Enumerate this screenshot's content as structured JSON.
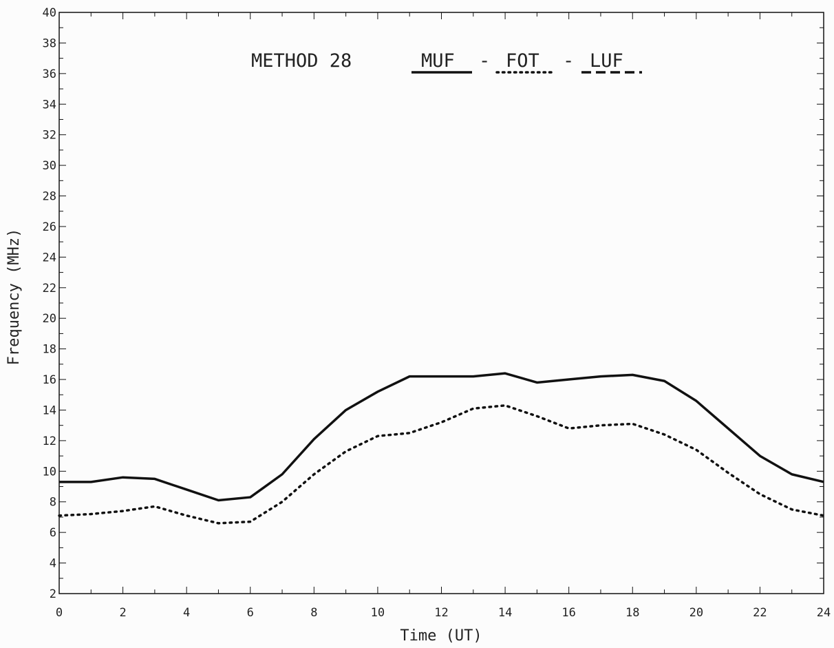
{
  "chart_data": {
    "type": "line",
    "title": "METHOD 28",
    "title_separator": "-",
    "xlabel": "Time (UT)",
    "ylabel": "Frequency (MHz)",
    "xlim": [
      0,
      24
    ],
    "ylim": [
      2,
      40
    ],
    "x_tick_labels": [
      "0",
      "2",
      "4",
      "6",
      "8",
      "10",
      "12",
      "14",
      "16",
      "18",
      "20",
      "22",
      "24"
    ],
    "y_tick_labels": [
      "2",
      "4",
      "6",
      "8",
      "10",
      "12",
      "14",
      "16",
      "18",
      "20",
      "22",
      "24",
      "26",
      "28",
      "30",
      "32",
      "34",
      "36",
      "38",
      "40"
    ],
    "grid": false,
    "legend_position": "top-center",
    "series": [
      {
        "name": "MUF",
        "style": "solid",
        "x": [
          0,
          1,
          2,
          3,
          4,
          5,
          6,
          7,
          8,
          9,
          10,
          11,
          12,
          13,
          14,
          15,
          16,
          17,
          18,
          19,
          20,
          21,
          22,
          23,
          24
        ],
        "values": [
          9.3,
          9.3,
          9.6,
          9.5,
          8.8,
          8.1,
          8.3,
          9.8,
          12.1,
          14.0,
          15.2,
          16.2,
          16.2,
          16.2,
          16.4,
          15.8,
          16.0,
          16.2,
          16.3,
          15.9,
          14.6,
          12.8,
          11.0,
          9.8,
          9.3
        ]
      },
      {
        "name": "FOT",
        "style": "dotted",
        "x": [
          0,
          1,
          2,
          3,
          4,
          5,
          6,
          7,
          8,
          9,
          10,
          11,
          12,
          13,
          14,
          15,
          16,
          17,
          18,
          19,
          20,
          21,
          22,
          23,
          24
        ],
        "values": [
          7.1,
          7.2,
          7.4,
          7.7,
          7.1,
          6.6,
          6.7,
          8.0,
          9.8,
          11.3,
          12.3,
          12.5,
          13.2,
          14.1,
          14.3,
          13.6,
          12.8,
          13.0,
          13.1,
          12.4,
          11.4,
          9.9,
          8.5,
          7.5,
          7.1
        ]
      },
      {
        "name": "LUF",
        "style": "dashed",
        "x": [],
        "values": []
      }
    ]
  }
}
